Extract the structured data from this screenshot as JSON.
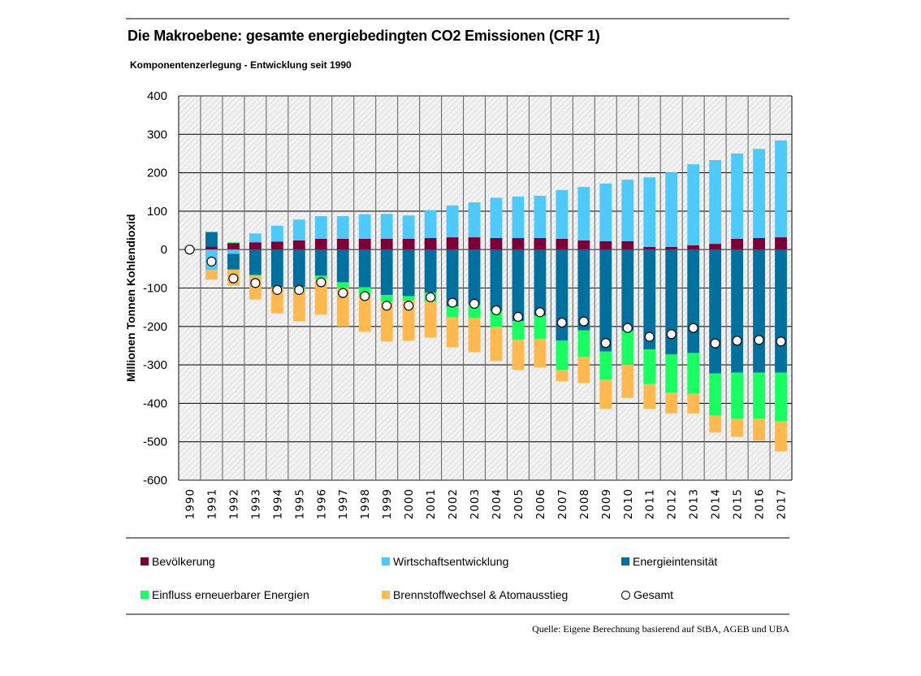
{
  "header": {
    "title": "Die Makroebene: gesamte energiebedingten CO2 Emissionen (CRF 1)",
    "subtitle": "Komponentenzerlegung  - Entwicklung seit 1990"
  },
  "footer": {
    "source": "Quelle: Eigene Berechnung basierend auf StBA, AGEB und UBA"
  },
  "chart_data": {
    "type": "bar",
    "stacked": true,
    "title": "Die Makroebene: gesamte energiebedingten CO2 Emissionen (CRF 1)",
    "subtitle": "Komponentenzerlegung  - Entwicklung seit 1990",
    "xlabel": "",
    "ylabel": "Millionen Tonnen Kohlendioxid",
    "ylim": [
      -600,
      400
    ],
    "yticks": [
      400,
      300,
      200,
      100,
      0,
      -100,
      -200,
      -300,
      -400,
      -500,
      -600
    ],
    "grid": true,
    "legend_position": "bottom",
    "categories": [
      "1990",
      "1991",
      "1992",
      "1993",
      "1994",
      "1995",
      "1996",
      "1997",
      "1998",
      "1999",
      "2000",
      "2001",
      "2002",
      "2003",
      "2004",
      "2005",
      "2006",
      "2007",
      "2008",
      "2009",
      "2010",
      "2011",
      "2012",
      "2013",
      "2014",
      "2015",
      "2016",
      "2017"
    ],
    "series": [
      {
        "name": "Bevölkerung",
        "color": "#7b0037",
        "values": [
          0,
          8,
          17,
          19,
          21,
          24,
          28,
          28,
          28,
          28,
          28,
          30,
          32,
          32,
          30,
          30,
          30,
          28,
          24,
          22,
          22,
          7,
          7,
          11,
          15,
          28,
          30,
          32
        ]
      },
      {
        "name": "Wirtschaftsentwicklung",
        "color": "#4dc9fa",
        "values": [
          0,
          -53,
          -11,
          23,
          41,
          54,
          59,
          59,
          64,
          65,
          61,
          73,
          83,
          91,
          105,
          108,
          110,
          127,
          139,
          150,
          160,
          181,
          194,
          211,
          218,
          222,
          232,
          252
        ]
      },
      {
        "name": "Energieintensität",
        "color": "#00709e",
        "values": [
          0,
          37,
          -41,
          -66,
          -98,
          -97,
          -68,
          -85,
          -98,
          -118,
          -121,
          -112,
          -148,
          -144,
          -160,
          -186,
          -172,
          -237,
          -210,
          -265,
          -211,
          -260,
          -273,
          -269,
          -322,
          -320,
          -320,
          -320
        ]
      },
      {
        "name": "Einfluss erneuerbarer Energien",
        "color": "#18ff62",
        "values": [
          0,
          2,
          2,
          -2,
          0,
          -8,
          -8,
          -15,
          -21,
          -17,
          -12,
          -23,
          -28,
          -34,
          -42,
          -49,
          -60,
          -76,
          -69,
          -73,
          -88,
          -90,
          -99,
          -106,
          -110,
          -120,
          -120,
          -127
        ]
      },
      {
        "name": "Brennstoffwechsel & Atomausstieg",
        "color": "#ffb94f",
        "values": [
          0,
          -25,
          -42,
          -62,
          -68,
          -81,
          -93,
          -100,
          -95,
          -104,
          -104,
          -94,
          -78,
          -89,
          -88,
          -78,
          -75,
          -30,
          -68,
          -76,
          -87,
          -64,
          -54,
          -51,
          -44,
          -47,
          -57,
          -78
        ]
      }
    ],
    "total": {
      "name": "Gesamt",
      "marker": "circle",
      "values": [
        0,
        -31,
        -75,
        -87,
        -105,
        -105,
        -85,
        -113,
        -121,
        -146,
        -146,
        -124,
        -138,
        -141,
        -158,
        -175,
        -163,
        -190,
        -187,
        -243,
        -204,
        -227,
        -220,
        -204,
        -244,
        -237,
        -235,
        -239
      ]
    }
  },
  "legend": [
    {
      "label": "Bevölkerung",
      "color": "#7b0037",
      "kind": "square"
    },
    {
      "label": "Wirtschaftsentwicklung",
      "color": "#4dc9fa",
      "kind": "square"
    },
    {
      "label": "Energieintensität",
      "color": "#00709e",
      "kind": "square"
    },
    {
      "label": "Einfluss erneuerbarer Energien",
      "color": "#18ff62",
      "kind": "square"
    },
    {
      "label": "Brennstoffwechsel & Atomausstieg",
      "color": "#ffb94f",
      "kind": "square"
    },
    {
      "label": "Gesamt",
      "color": "#ffffff",
      "kind": "circle"
    }
  ]
}
